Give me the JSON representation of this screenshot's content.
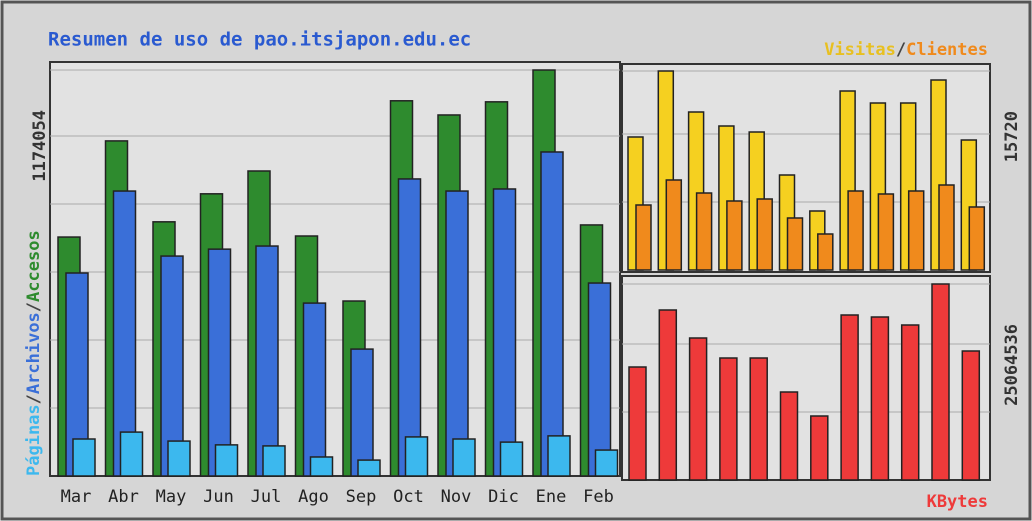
{
  "chart_data": [
    {
      "type": "bar",
      "title": "Resumen de uso de pao.itsjapon.edu.ec",
      "separator": "/",
      "categories": [
        "Mar",
        "Abr",
        "May",
        "Jun",
        "Jul",
        "Ago",
        "Sep",
        "Oct",
        "Nov",
        "Dic",
        "Ene",
        "Feb"
      ],
      "series": [
        {
          "name": "Accesos",
          "color": "#2e8b2e",
          "values": [
            691000,
            969000,
            735000,
            816000,
            882000,
            694000,
            506000,
            1085000,
            1044000,
            1082000,
            1174054,
            726000
          ]
        },
        {
          "name": "Archivos",
          "color": "#3a6fd8",
          "values": [
            587000,
            824000,
            636000,
            656000,
            665000,
            500000,
            367000,
            859000,
            824000,
            830000,
            937000,
            558000
          ]
        },
        {
          "name": "Páginas",
          "color": "#3cb8ee",
          "values": [
            107000,
            127000,
            101000,
            90000,
            87000,
            55000,
            46000,
            113000,
            107000,
            98000,
            116000,
            75000
          ]
        }
      ],
      "ylim": [
        0,
        1174054
      ],
      "yticks": [
        1174054
      ]
    },
    {
      "type": "bar",
      "separator": "/",
      "series": [
        {
          "name": "Visitas",
          "color": "#f5d020",
          "values": [
            10507,
            15720,
            12481,
            11375,
            10901,
            7504,
            4661,
            14140,
            13192,
            13192,
            15009,
            10269
          ]
        },
        {
          "name": "Clientes",
          "color": "#f08a1c",
          "values": [
            5135,
            7110,
            6082,
            5451,
            5609,
            4108,
            2844,
            6241,
            6004,
            6241,
            6714,
            4977
          ]
        }
      ],
      "ylim": [
        0,
        15720
      ],
      "yticks": [
        15720
      ]
    },
    {
      "type": "bar",
      "series": [
        {
          "name": "KBytes",
          "color": "#ee3a3a",
          "values": [
            14450000,
            21740000,
            18159000,
            15601000,
            15601000,
            11253000,
            8184000,
            21100000,
            20844000,
            19821000,
            25064536,
            16496000
          ]
        }
      ],
      "ylim": [
        0,
        25064536
      ],
      "yticks": [
        25064536
      ]
    }
  ]
}
